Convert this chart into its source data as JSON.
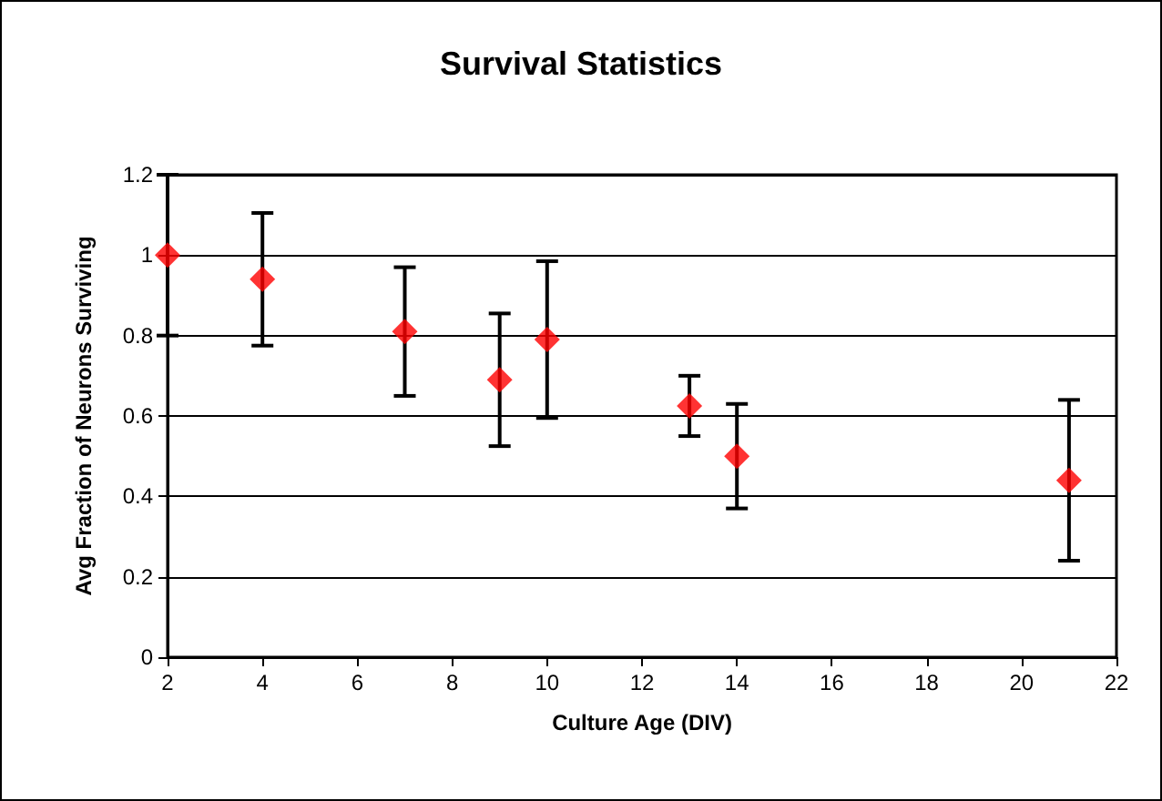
{
  "chart_data": {
    "type": "scatter",
    "title": "Survival Statistics",
    "xlabel": "Culture Age (DIV)",
    "ylabel": "Avg Fraction of Neurons Surviving",
    "x": [
      2,
      4,
      7,
      9,
      10,
      13,
      14,
      21
    ],
    "series": [
      {
        "color": "#ff0000",
        "values": [
          1.0,
          0.94,
          0.81,
          0.69,
          0.79,
          0.625,
          0.5,
          0.44
        ],
        "errors": [
          0.2,
          0.165,
          0.16,
          0.165,
          0.195,
          0.075,
          0.13,
          0.2
        ]
      }
    ],
    "xlim": [
      2,
      22
    ],
    "xticks": [
      2,
      4,
      6,
      8,
      10,
      12,
      14,
      16,
      18,
      20,
      22
    ],
    "ylim": [
      0,
      1.2
    ],
    "yticks": [
      0,
      0.2,
      0.4,
      0.6,
      0.8,
      1,
      1.2
    ],
    "grid": "y",
    "marker": "diamond"
  }
}
